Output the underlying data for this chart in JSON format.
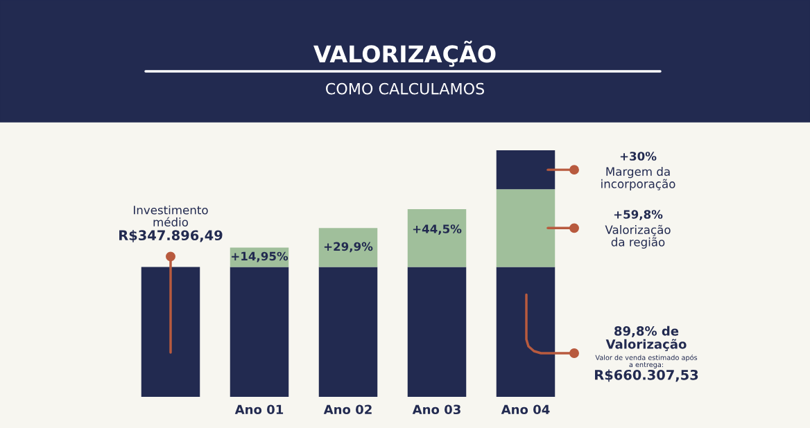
{
  "chart_data": {
    "type": "bar",
    "stacked": true,
    "title": "VALORIZAÇÃO",
    "subtitle": "COMO CALCULAMOS",
    "categories": [
      null,
      "Ano 01",
      "Ano 02",
      "Ano 03",
      "Ano 04"
    ],
    "series": [
      {
        "color": "#222a50",
        "values": [
          100,
          100,
          100,
          100,
          100
        ]
      },
      {
        "color": "#a0bf9b",
        "values": [
          null,
          14.95,
          29.9,
          44.5,
          59.8
        ],
        "value_labels": [
          null,
          "+14,95%",
          "+29,9%",
          "+44,5%",
          null
        ]
      },
      {
        "color": "#222a50",
        "values": [
          null,
          null,
          null,
          null,
          30
        ]
      }
    ],
    "annotations": [
      "Investimento\nmédio",
      "R$347.896,49",
      "+30%",
      "Margem da\nincorporação",
      "+59,8%",
      "Valorização\nda região",
      "89,8% de\nValorização",
      "Valor de venda estimado após\na entrega:",
      "R$660.307,53"
    ]
  }
}
